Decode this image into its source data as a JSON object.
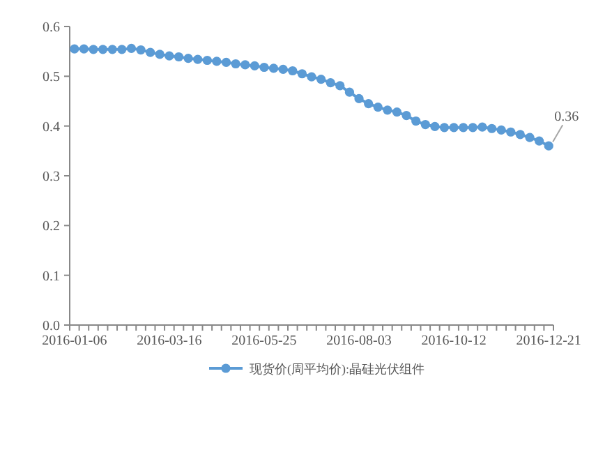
{
  "chart_data": {
    "type": "line",
    "categories": [
      "2016-01-06",
      null,
      null,
      null,
      null,
      null,
      null,
      null,
      null,
      null,
      "2016-03-16",
      null,
      null,
      null,
      null,
      null,
      null,
      null,
      null,
      null,
      "2016-05-25",
      null,
      null,
      null,
      null,
      null,
      null,
      null,
      null,
      null,
      "2016-08-03",
      null,
      null,
      null,
      null,
      null,
      null,
      null,
      null,
      null,
      "2016-10-12",
      null,
      null,
      null,
      null,
      null,
      null,
      null,
      null,
      null,
      "2016-12-21"
    ],
    "series": [
      {
        "name": "现货价(周平均价):晶硅光伏组件",
        "color": "#5b9bd5",
        "values": [
          0.555,
          0.555,
          0.554,
          0.554,
          0.554,
          0.554,
          0.556,
          0.553,
          0.548,
          0.544,
          0.541,
          0.539,
          0.536,
          0.534,
          0.532,
          0.53,
          0.528,
          0.525,
          0.523,
          0.521,
          0.518,
          0.516,
          0.514,
          0.511,
          0.505,
          0.499,
          0.494,
          0.487,
          0.481,
          0.468,
          0.455,
          0.445,
          0.438,
          0.432,
          0.428,
          0.421,
          0.41,
          0.403,
          0.399,
          0.397,
          0.397,
          0.397,
          0.397,
          0.398,
          0.395,
          0.392,
          0.388,
          0.383,
          0.377,
          0.37,
          0.36
        ]
      }
    ],
    "ylim": [
      0,
      0.6
    ],
    "yticks": [
      {
        "value": 0,
        "label": "0.0"
      },
      0.1,
      0.2,
      0.3,
      0.4,
      0.5,
      0.6
    ],
    "annotations": [
      {
        "text": "0.36",
        "x": "2016-12-21",
        "y": 0.36
      }
    ],
    "marker": "circle",
    "legend": "bottom",
    "grid": false
  }
}
